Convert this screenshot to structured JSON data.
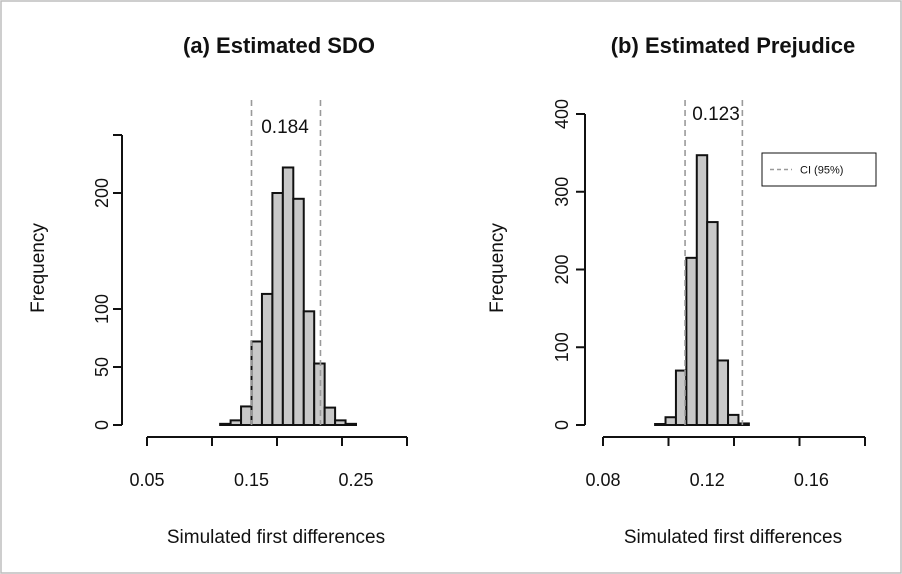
{
  "chart_data": [
    {
      "type": "bar",
      "title": "(a) Estimated SDO",
      "xlabel": "Simulated first differences",
      "ylabel": "Frequency",
      "x_ticks": [
        0.05,
        0.15,
        0.25
      ],
      "x_tick_labels": [
        "0.05",
        "0.15",
        "0.25"
      ],
      "y_ticks": [
        0,
        50,
        100,
        200
      ],
      "y_tick_labels": [
        "0",
        "50",
        "100",
        "200"
      ],
      "xlim": [
        0.05,
        0.3
      ],
      "ylim": [
        0,
        250
      ],
      "bin_width": 0.01,
      "bins": [
        {
          "x0": 0.12,
          "x1": 0.13,
          "count": 1
        },
        {
          "x0": 0.13,
          "x1": 0.14,
          "count": 4
        },
        {
          "x0": 0.14,
          "x1": 0.15,
          "count": 16
        },
        {
          "x0": 0.15,
          "x1": 0.16,
          "count": 72
        },
        {
          "x0": 0.16,
          "x1": 0.17,
          "count": 113
        },
        {
          "x0": 0.17,
          "x1": 0.18,
          "count": 200
        },
        {
          "x0": 0.18,
          "x1": 0.19,
          "count": 222
        },
        {
          "x0": 0.19,
          "x1": 0.2,
          "count": 195
        },
        {
          "x0": 0.2,
          "x1": 0.21,
          "count": 98
        },
        {
          "x0": 0.21,
          "x1": 0.22,
          "count": 53
        },
        {
          "x0": 0.22,
          "x1": 0.23,
          "count": 15
        },
        {
          "x0": 0.23,
          "x1": 0.24,
          "count": 4
        },
        {
          "x0": 0.24,
          "x1": 0.25,
          "count": 1
        }
      ],
      "ci_lower": 0.15,
      "ci_upper": 0.216,
      "annotation": "0.184"
    },
    {
      "type": "bar",
      "title": "(b) Estimated Prejudice",
      "xlabel": "Simulated first differences",
      "ylabel": "Frequency",
      "x_ticks": [
        0.08,
        0.12,
        0.16
      ],
      "x_tick_labels": [
        "0.08",
        "0.12",
        "0.16"
      ],
      "y_ticks": [
        0,
        100,
        200,
        300,
        400
      ],
      "y_tick_labels": [
        "0",
        "100",
        "200",
        "300",
        "400"
      ],
      "xlim": [
        0.08,
        0.18
      ],
      "ylim": [
        0,
        400
      ],
      "bin_width": 0.004,
      "bins": [
        {
          "x0": 0.1,
          "x1": 0.104,
          "count": 1
        },
        {
          "x0": 0.104,
          "x1": 0.108,
          "count": 10
        },
        {
          "x0": 0.108,
          "x1": 0.112,
          "count": 70
        },
        {
          "x0": 0.112,
          "x1": 0.116,
          "count": 215
        },
        {
          "x0": 0.116,
          "x1": 0.12,
          "count": 347
        },
        {
          "x0": 0.12,
          "x1": 0.124,
          "count": 261
        },
        {
          "x0": 0.124,
          "x1": 0.128,
          "count": 83
        },
        {
          "x0": 0.128,
          "x1": 0.132,
          "count": 13
        },
        {
          "x0": 0.132,
          "x1": 0.136,
          "count": 2
        }
      ],
      "ci_lower": 0.1115,
      "ci_upper": 0.1335,
      "annotation": "0.123",
      "legend": {
        "label": "CI (95%)",
        "placement": "top-right"
      }
    }
  ],
  "colors": {
    "bar_fill": "#c8c8c8",
    "bar_stroke": "#111111",
    "ci_line": "#9a9a9a",
    "text": "#111111",
    "frame": "#bdbdbd"
  }
}
